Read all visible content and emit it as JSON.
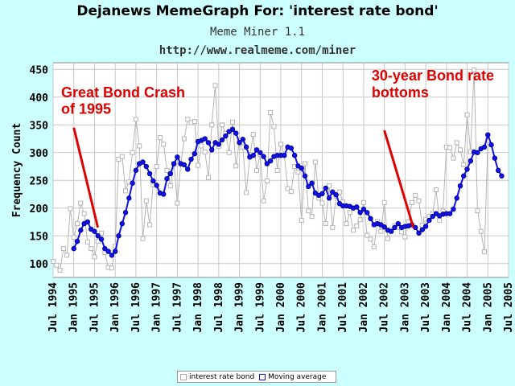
{
  "header": {
    "title": "Dejanews MemeGraph For: 'interest rate bond'",
    "subtitle": "Meme Miner 1.1",
    "url": "http://www.realmeme.com/miner"
  },
  "colors": {
    "background": "#ccffff",
    "plot_bg": "#ffffff",
    "grid": "#c8c8c8",
    "raw_series": "#b4b4b4",
    "moving_average": "#1010ee",
    "annotation": "#e00000"
  },
  "chart_data": {
    "type": "line",
    "title": "Dejanews MemeGraph For: 'interest rate bond'",
    "ylabel": "Frequency Count",
    "xlabel": "",
    "ylim": [
      75,
      462
    ],
    "yticks": [
      100,
      150,
      200,
      250,
      300,
      350,
      400,
      450
    ],
    "x_start": 1994.5,
    "x_end": 2005.5,
    "xticks": [
      "Jul 1994",
      "Jan 1995",
      "Jul 1995",
      "Jan 1996",
      "Jul 1996",
      "Jan 1997",
      "Jul 1997",
      "Jan 1998",
      "Jul 1998",
      "Jan 1999",
      "Jul 1999",
      "Jan 2000",
      "Jul 2000",
      "Jan 2001",
      "Jul 2001",
      "Jan 2002",
      "Jul 2002",
      "Jan 2003",
      "Jul 2003",
      "Jan 2004",
      "Jul 2004",
      "Jan 2005",
      "Jul 2005"
    ],
    "grid": true,
    "legend_position": "bottom-center",
    "series": [
      {
        "name": "interest rate bond",
        "style": "grey-square-markers",
        "start": 1994.5,
        "step_months": 1,
        "values": [
          104,
          97,
          88,
          127,
          115,
          199,
          147,
          172,
          209,
          190,
          139,
          127,
          112,
          140,
          155,
          120,
          93,
          92,
          131,
          288,
          293,
          231,
          247,
          300,
          360,
          312,
          145,
          213,
          170,
          242,
          275,
          327,
          315,
          268,
          240,
          280,
          209,
          280,
          325,
          360,
          354,
          356,
          277,
          312,
          301,
          255,
          350,
          421,
          311,
          350,
          335,
          300,
          355,
          276,
          322,
          310,
          228,
          292,
          333,
          268,
          297,
          213,
          249,
          372,
          347,
          268,
          315,
          296,
          235,
          230,
          275,
          265,
          178,
          280,
          195,
          185,
          283,
          218,
          209,
          172,
          240,
          165,
          221,
          229,
          211,
          172,
          192,
          160,
          168,
          179,
          210,
          151,
          144,
          130,
          176,
          158,
          210,
          145,
          161,
          168,
          165,
          157,
          148,
          175,
          210,
          223,
          213,
          169,
          180,
          185,
          190,
          233,
          178,
          195,
          310,
          309,
          290,
          318,
          305,
          278,
          368,
          302,
          449,
          195,
          158,
          121,
          322
        ]
      },
      {
        "name": "Moving average",
        "style": "blue-line-circles",
        "start": 1995.0,
        "step_months": 1,
        "values": [
          127,
          140,
          160,
          172,
          175,
          162,
          158,
          150,
          144,
          127,
          122,
          115,
          122,
          150,
          172,
          192,
          218,
          245,
          268,
          280,
          283,
          275,
          262,
          249,
          241,
          227,
          225,
          253,
          262,
          280,
          292,
          280,
          278,
          270,
          288,
          298,
          320,
          322,
          325,
          318,
          305,
          318,
          315,
          323,
          330,
          338,
          342,
          335,
          318,
          324,
          310,
          292,
          295,
          305,
          300,
          293,
          280,
          285,
          293,
          295,
          295,
          295,
          310,
          308,
          295,
          276,
          272,
          258,
          239,
          245,
          227,
          223,
          226,
          236,
          218,
          229,
          224,
          208,
          204,
          204,
          203,
          200,
          202,
          192,
          198,
          192,
          181,
          170,
          172,
          170,
          166,
          160,
          158,
          165,
          172,
          165,
          167,
          168,
          170,
          165,
          155,
          161,
          167,
          178,
          185,
          190,
          186,
          189,
          190,
          190,
          198,
          218,
          240,
          258,
          270,
          285,
          301,
          300,
          307,
          310,
          332,
          314,
          290,
          268,
          258
        ]
      }
    ],
    "annotations": [
      {
        "text": "Great Bond Crash",
        "x": 1994.5,
        "y": 400
      },
      {
        "text": "of 1995",
        "x": 1994.5,
        "y": 370
      },
      {
        "text": "30-year Bond rate",
        "x": 2002.0,
        "y": 430
      },
      {
        "text": "bottoms",
        "x": 2002.0,
        "y": 400
      }
    ],
    "arrows": [
      {
        "from": [
          1995.0,
          345
        ],
        "to": [
          1995.58,
          165
        ]
      },
      {
        "from": [
          2002.5,
          340
        ],
        "to": [
          2003.2,
          165
        ]
      }
    ]
  },
  "legend": {
    "items": [
      "interest rate bond",
      "Moving average"
    ]
  }
}
